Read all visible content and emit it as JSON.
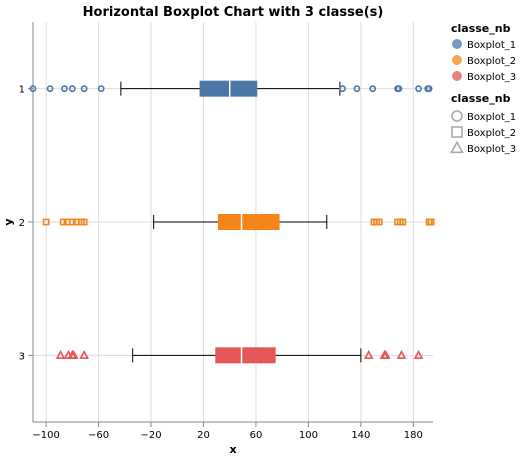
{
  "chart_data": {
    "type": "boxplot",
    "title": "Horizontal Boxplot Chart with 3 classe(s)",
    "xlabel": "x",
    "ylabel": "y",
    "xlim": [
      -110,
      195
    ],
    "xticks": [
      -100,
      -60,
      -20,
      20,
      60,
      100,
      140,
      180
    ],
    "grid": true,
    "categories": [
      "1",
      "2",
      "3"
    ],
    "series": [
      {
        "name": "Boxplot_1",
        "category": "1",
        "color": "#4c78a8",
        "shape": "circle",
        "whisker_low": -43,
        "q1": 17,
        "median": 40,
        "q3": 61,
        "whisker_high": 124,
        "outliers": [
          -110,
          -97,
          -86,
          -80,
          -71,
          -58,
          126,
          137,
          149,
          168,
          169,
          184,
          191,
          192
        ]
      },
      {
        "name": "Boxplot_2",
        "category": "2",
        "color": "#f58518",
        "shape": "square",
        "whisker_low": -18,
        "q1": 31,
        "median": 49,
        "q3": 78,
        "whisker_high": 114,
        "outliers": [
          -100,
          -87,
          -84,
          -80,
          -77,
          -73,
          -71,
          150,
          152,
          154,
          168,
          170,
          172,
          192,
          196,
          197
        ]
      },
      {
        "name": "Boxplot_3",
        "category": "3",
        "color": "#e45756",
        "shape": "triangle",
        "whisker_low": -34,
        "q1": 29,
        "median": 49,
        "q3": 75,
        "whisker_high": 140,
        "outliers": [
          -89,
          -83,
          -80,
          -79,
          -71,
          146,
          158,
          159,
          171,
          184
        ]
      }
    ],
    "legend": {
      "position": "right",
      "color_title": "classe_nb",
      "shape_title": "classe_nb",
      "entries": [
        "Boxplot_1",
        "Boxplot_2",
        "Boxplot_3"
      ]
    }
  }
}
